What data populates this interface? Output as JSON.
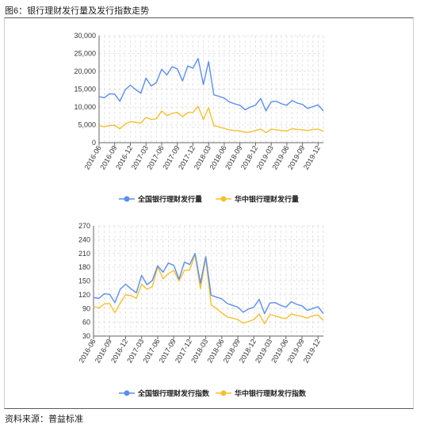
{
  "figure": {
    "title": "图6：银行理财发行量及发行指数走势",
    "source": "资料来源：普益标准"
  },
  "colors": {
    "blue": "#5b8ef0",
    "yellow": "#f5c02f",
    "grid": "#dcdcdc",
    "axis": "#666666"
  },
  "chart_data": [
    {
      "type": "line",
      "x": [
        "2016-06",
        "2016-07",
        "2016-08",
        "2016-09",
        "2016-10",
        "2016-11",
        "2016-12",
        "2017-01",
        "2017-02",
        "2017-03",
        "2017-04",
        "2017-05",
        "2017-06",
        "2017-07",
        "2017-08",
        "2017-09",
        "2017-10",
        "2017-11",
        "2017-12",
        "2018-01",
        "2018-02",
        "2018-03",
        "2018-04",
        "2018-05",
        "2018-06",
        "2018-07",
        "2018-08",
        "2018-09",
        "2018-10",
        "2018-11",
        "2018-12",
        "2019-01",
        "2019-02",
        "2019-03",
        "2019-04",
        "2019-05",
        "2019-06",
        "2019-07",
        "2019-08",
        "2019-09",
        "2019-10",
        "2019-11",
        "2019-12",
        "2020-01"
      ],
      "xticks": [
        "2016-06",
        "2016-09",
        "2016-12",
        "2017-03",
        "2017-06",
        "2017-09",
        "2017-12",
        "2018-03",
        "2018-06",
        "2018-09",
        "2018-12",
        "2019-03",
        "2019-06",
        "2019-09",
        "2019-12"
      ],
      "yticks": [
        "0",
        "5,000",
        "10,000",
        "15,000",
        "20,000",
        "25,000",
        "30,000"
      ],
      "ylim": [
        0,
        30000
      ],
      "grid": true,
      "legend_position": "bottom",
      "series": [
        {
          "name": "全国银行理财发行量",
          "color": "#5b8ef0",
          "values": [
            12900,
            12600,
            13700,
            13600,
            11600,
            14800,
            16100,
            14900,
            13900,
            18100,
            15900,
            16900,
            20600,
            19000,
            21300,
            20700,
            17300,
            21500,
            20900,
            23600,
            16300,
            22700,
            13400,
            13000,
            12500,
            11400,
            10900,
            10500,
            9200,
            10000,
            10500,
            12400,
            8900,
            11500,
            11600,
            10900,
            10500,
            11800,
            11100,
            10700,
            9600,
            10100,
            10600,
            8900
          ]
        },
        {
          "name": "华中银行理财发行量",
          "color": "#f5c02f",
          "values": [
            4700,
            4500,
            4800,
            4900,
            3900,
            5200,
            5900,
            5700,
            5500,
            7100,
            6500,
            6700,
            8900,
            7600,
            8200,
            8500,
            7300,
            8500,
            8500,
            10200,
            6500,
            9800,
            4800,
            4400,
            4000,
            3600,
            3400,
            3300,
            2900,
            3000,
            3400,
            3800,
            2800,
            3800,
            3600,
            3400,
            3300,
            3900,
            3700,
            3600,
            3400,
            3700,
            3800,
            3200
          ]
        }
      ]
    },
    {
      "type": "line",
      "x": [
        "2016-06",
        "2016-07",
        "2016-08",
        "2016-09",
        "2016-10",
        "2016-11",
        "2016-12",
        "2017-01",
        "2017-02",
        "2017-03",
        "2017-04",
        "2017-05",
        "2017-06",
        "2017-07",
        "2017-08",
        "2017-09",
        "2017-10",
        "2017-11",
        "2017-12",
        "2018-01",
        "2018-02",
        "2018-03",
        "2018-04",
        "2018-05",
        "2018-06",
        "2018-07",
        "2018-08",
        "2018-09",
        "2018-10",
        "2018-11",
        "2018-12",
        "2019-01",
        "2019-02",
        "2019-03",
        "2019-04",
        "2019-05",
        "2019-06",
        "2019-07",
        "2019-08",
        "2019-09",
        "2019-10",
        "2019-11",
        "2019-12",
        "2020-01"
      ],
      "xticks": [
        "2016-06",
        "2016-09",
        "2016-12",
        "2017-03",
        "2017-06",
        "2017-09",
        "2017-12",
        "2018-03",
        "2018-06",
        "2018-09",
        "2018-12",
        "2019-03",
        "2019-06",
        "2019-09",
        "2019-12"
      ],
      "yticks": [
        "30",
        "60",
        "90",
        "120",
        "150",
        "180",
        "210",
        "240",
        "270"
      ],
      "ylim": [
        30,
        270
      ],
      "grid": true,
      "legend_position": "bottom",
      "series": [
        {
          "name": "全国银行理财发行指数",
          "color": "#5b8ef0",
          "values": [
            114,
            112,
            122,
            121,
            103,
            132,
            143,
            133,
            124,
            162,
            142,
            151,
            183,
            169,
            189,
            184,
            154,
            191,
            186,
            210,
            145,
            203,
            119,
            115,
            111,
            101,
            97,
            93,
            82,
            89,
            93,
            110,
            79,
            102,
            103,
            97,
            93,
            105,
            99,
            96,
            86,
            90,
            94,
            79
          ]
        },
        {
          "name": "华中银行理财发行指数",
          "color": "#f5c02f",
          "values": [
            95,
            91,
            100,
            101,
            81,
            102,
            120,
            118,
            112,
            143,
            132,
            137,
            181,
            155,
            166,
            173,
            150,
            173,
            174,
            208,
            133,
            200,
            98,
            90,
            80,
            72,
            69,
            66,
            58,
            62,
            66,
            78,
            57,
            77,
            74,
            70,
            68,
            78,
            75,
            73,
            69,
            74,
            76,
            64
          ]
        }
      ]
    }
  ]
}
